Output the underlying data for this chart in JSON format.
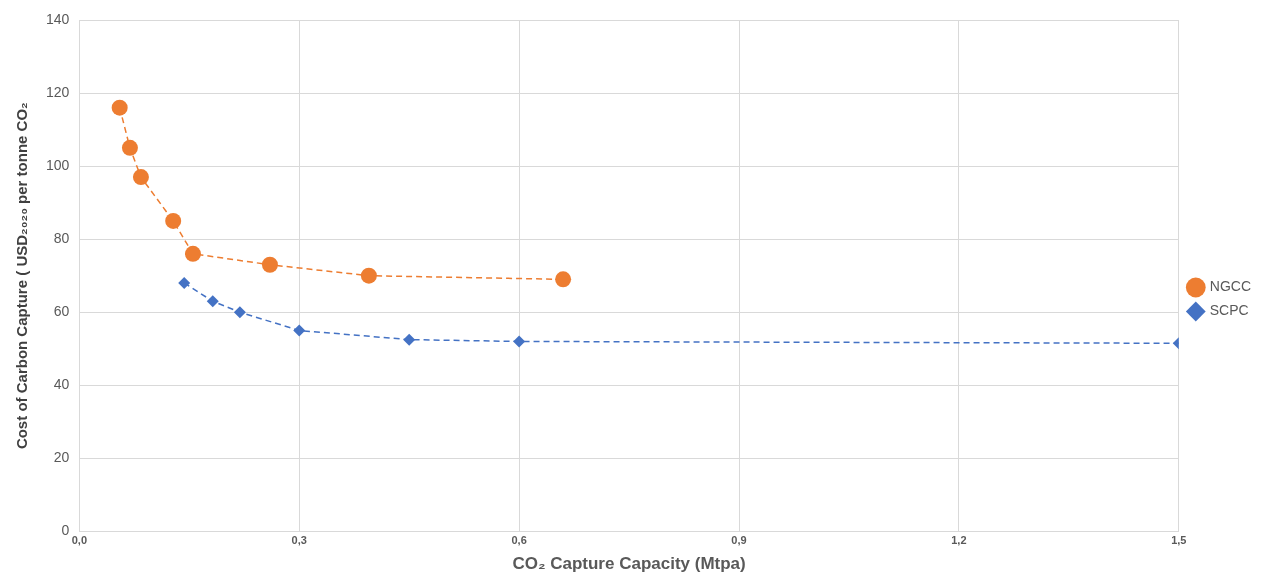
{
  "chart_data": {
    "type": "line",
    "xlabel": "CO₂ Capture Capacity (Mtpa)",
    "ylabel": "Cost of Carbon Capture ( USD₂₀₂₀ per tonne CO₂",
    "xlim": [
      0,
      1.5
    ],
    "xticks": [
      {
        "value": 0,
        "label": "0,0"
      },
      {
        "value": 0.3,
        "label": "0,3"
      },
      {
        "value": 0.6,
        "label": "0,6"
      },
      {
        "value": 0.9,
        "label": "0,9"
      },
      {
        "value": 1.2,
        "label": "1,2"
      },
      {
        "value": 1.5,
        "label": "1,5"
      }
    ],
    "ylim": [
      0,
      140
    ],
    "yticks": [
      0,
      20,
      40,
      60,
      80,
      100,
      120,
      140
    ],
    "grid": true,
    "legend": "right",
    "line_style": "dashed",
    "series": [
      {
        "name": "NGCC",
        "color": "#ed7d31",
        "marker": "circle",
        "x": [
          0.055,
          0.069,
          0.084,
          0.128,
          0.155,
          0.26,
          0.395,
          0.66
        ],
        "values": [
          116,
          105,
          97,
          85,
          76,
          73,
          70,
          69
        ]
      },
      {
        "name": "SCPC",
        "color": "#4472c4",
        "marker": "diamond",
        "x": [
          0.143,
          0.182,
          0.219,
          0.3,
          0.45,
          0.6,
          1.5
        ],
        "values": [
          68,
          63,
          60,
          55,
          52.5,
          52,
          51.5
        ]
      }
    ]
  }
}
